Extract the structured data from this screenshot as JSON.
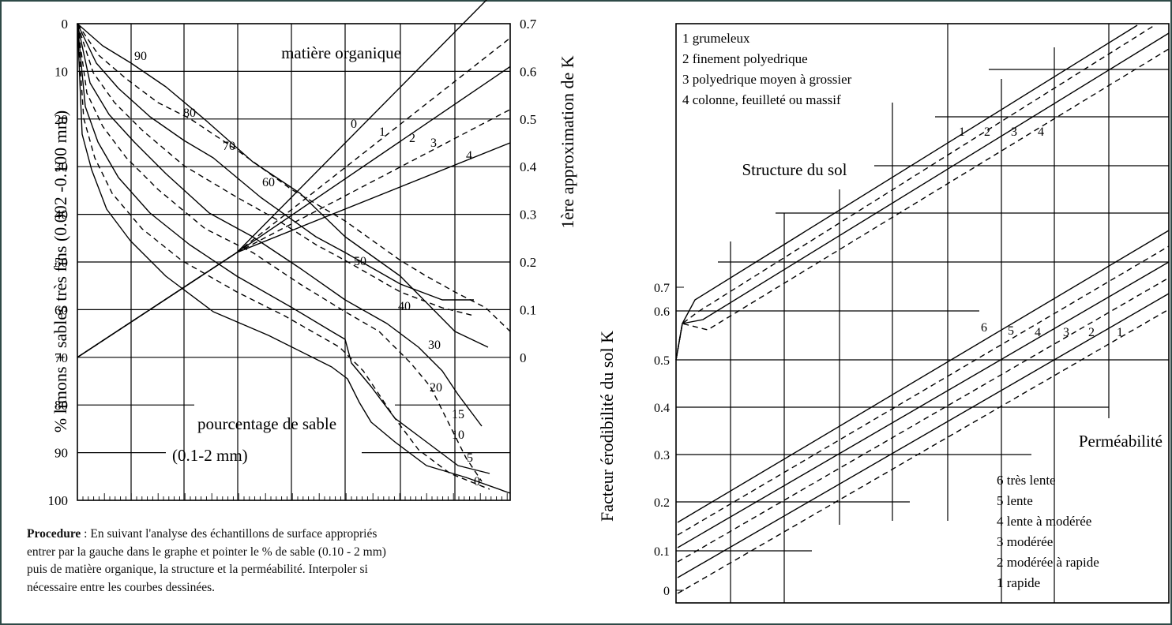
{
  "chart_data": [
    {
      "type": "line",
      "title": "",
      "left_axis_label": "% limons + sables très fins (0.002 -0.100 mm)",
      "right_axis_label": "1ère approximation de K",
      "left_ticks": [
        "0",
        "10",
        "20",
        "30",
        "40",
        "50",
        "60",
        "70",
        "80",
        "90",
        "100"
      ],
      "right_ticks": [
        "0.7",
        "0.6",
        "0.5",
        "0.4",
        "0.3",
        "0.2",
        "0.1",
        "0"
      ],
      "left_ylim": [
        0,
        100
      ],
      "right_ylim": [
        0,
        0.7
      ],
      "inner_labels": {
        "organic_matter": "matière organique",
        "sand_percentage_line1": "pourcentage de sable",
        "sand_percentage_line2": "(0.1-2 mm)"
      },
      "sand_curve_labels": [
        "90",
        "80",
        "70",
        "60",
        "50",
        "40",
        "30",
        "20",
        "15",
        "10",
        "5",
        "0"
      ],
      "organic_matter_labels": [
        "0",
        "1",
        "2",
        "3",
        "4"
      ],
      "grid": true
    },
    {
      "type": "line",
      "title": "",
      "y_axis_label": "Facteur érodibilité du sol K",
      "y_ticks": [
        "0.7",
        "0.6",
        "0.5",
        "0.4",
        "0.3",
        "0.2",
        "0.1",
        "0"
      ],
      "ylim": [
        0,
        0.7
      ],
      "structure": {
        "title": "Structure du sol",
        "legend": [
          "1 grumeleux",
          "2 finement polyedrique",
          "3 polyedrique moyen à grossier",
          "4 colonne, feuilleté ou massif"
        ],
        "curve_labels": [
          "1",
          "2",
          "3",
          "4"
        ]
      },
      "permeability": {
        "title": "Perméabilité",
        "legend": [
          "6 très lente",
          "5 lente",
          "4 lente à modérée",
          "3 modérée",
          "2 modérée à rapide",
          "1 rapide"
        ],
        "curve_labels": [
          "6",
          "5",
          "4",
          "3",
          "2",
          "1"
        ]
      },
      "grid": true
    }
  ],
  "procedure": {
    "label": "Procedure",
    "line1": " : En suivant l'analyse des échantillons de surface appropriés",
    "line2": " entrer par la gauche dans le graphe et pointer le % de sable (0.10 - 2 mm)",
    "line3": "puis de matière organique, la structure et la perméabilité. Interpoler si",
    "line4": "nécessaire entre les courbes dessinées."
  }
}
